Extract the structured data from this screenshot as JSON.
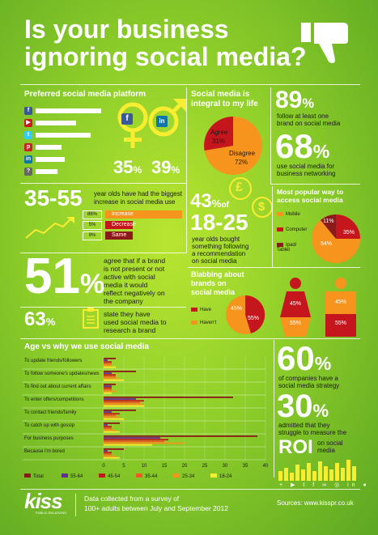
{
  "title": {
    "line1": "Is your business",
    "line2": "ignoring social media?"
  },
  "preferred": {
    "heading": "Preferred social media platform",
    "platforms": [
      {
        "icon": "facebook-icon",
        "glyph": "f",
        "color": "#3b5998",
        "value": 90
      },
      {
        "icon": "youtube-icon",
        "glyph": "▶",
        "color": "#cc181e",
        "value": 55
      },
      {
        "icon": "twitter-icon",
        "glyph": "t",
        "color": "#33ccff",
        "value": 75
      },
      {
        "icon": "pinterest-icon",
        "glyph": "p",
        "color": "#cb2027",
        "value": 35
      },
      {
        "icon": "linkedin-icon",
        "glyph": "in",
        "color": "#0e76a8",
        "value": 40
      },
      {
        "icon": "question-icon",
        "glyph": "?",
        "color": "#666666",
        "value": 30
      }
    ],
    "female_pct": "35",
    "male_pct": "39",
    "pct_sign": "%",
    "facebook_glyph": "f",
    "linkedin_glyph": "in"
  },
  "integral": {
    "heading_l1": "Social media is",
    "heading_l2": "integral to my life",
    "agree_label": "Agree",
    "agree_value": "31%",
    "agree_num": 31,
    "disagree_label": "Disagree",
    "disagree_value": "72%",
    "disagree_num": 72,
    "colors": {
      "agree": "#c4161c",
      "disagree": "#f7941d"
    }
  },
  "follow": {
    "stat1": "89",
    "stat1_desc_l1": "follow at least one",
    "stat1_desc_l2": "brand on social media",
    "stat2": "68",
    "stat2_desc_l1": "use social media for",
    "stat2_desc_l2": "business networking"
  },
  "age_increase": {
    "range": "35-55",
    "desc_l1": "year olds have had the biggest",
    "desc_l2": "increase in social media use",
    "rows": [
      {
        "pct": "86%",
        "label": "Increase",
        "value": 86,
        "color": "#f7941d"
      },
      {
        "pct": "5%",
        "label": "Decrease",
        "value": 5,
        "color": "#c4161c"
      },
      {
        "pct": "9%",
        "label": "Same",
        "value": 9,
        "color": "#8b1a1a"
      }
    ]
  },
  "recommend": {
    "pct": "43",
    "of": "of",
    "range": "18-25",
    "desc_l1": "year olds bought",
    "desc_l2": "something following",
    "desc_l3": "a recommendation",
    "desc_l4": "on social media",
    "pound_glyph": "£",
    "dollar_glyph": "$"
  },
  "access": {
    "heading": "Most popular way to access social media",
    "legend": [
      {
        "label": "Mobile",
        "color": "#f7941d"
      },
      {
        "label": "Computer",
        "color": "#c4161c"
      },
      {
        "label": "Ipad/ Tablet",
        "color": "#8b1a1a"
      }
    ],
    "values": [
      {
        "label": "11%",
        "value": 11
      },
      {
        "label": "35%",
        "value": 35
      },
      {
        "label": "54%",
        "value": 54
      }
    ]
  },
  "brand_presence": {
    "pct": "51",
    "desc_l1": "agree that if a brand",
    "desc_l2": "is not present or not",
    "desc_l3": "active with social",
    "desc_l4": "media it would",
    "desc_l5": "reflect negatively on",
    "desc_l6": "the company"
  },
  "research": {
    "pct": "63",
    "desc_l1": "state they have",
    "desc_l2": "used social media to",
    "desc_l3": "research a brand"
  },
  "blabbing": {
    "heading_l1": "Blabbing about",
    "heading_l2": "brands on",
    "heading_l3": "social media",
    "have_label": "Have",
    "have_value": "45%",
    "have_num": 45,
    "havent_label": "Haven't",
    "havent_value": "55%",
    "havent_num": 55,
    "female_top": "45%",
    "female_bottom": "55%",
    "male_top": "45%",
    "male_bottom": "55%"
  },
  "age_vs_why": {
    "heading": "Age vs why we use social media",
    "reasons": [
      "To update friends/followers",
      "To follow someone's updates/news",
      "To find out about current affairs",
      "To enter offers/competitions",
      "To contact friends/family",
      "To catch up with gossip",
      "For business purposes",
      "Because I'm bored"
    ],
    "legend": [
      "Total",
      "55-64",
      "45-54",
      "35-44",
      "25-34",
      "18-24"
    ],
    "colors": [
      "#8b1a1a",
      "#662d91",
      "#c4161c",
      "#f15a24",
      "#f7941d",
      "#f9ed32"
    ],
    "ticks": [
      "0",
      "5",
      "10",
      "15",
      "20",
      "25",
      "30",
      "35",
      "40"
    ]
  },
  "chart_data": {
    "type": "bar",
    "categories": [
      "To update friends/followers",
      "To follow someone's updates/news",
      "To find out about current affairs",
      "To enter offers/competitions",
      "To contact friends/family",
      "To catch up with gossip",
      "For business purposes",
      "Because I'm bored"
    ],
    "series": [
      {
        "name": "Total",
        "values": [
          3,
          8,
          3,
          32,
          8,
          4,
          38,
          5
        ]
      },
      {
        "name": "55-64",
        "values": [
          1,
          2,
          2,
          8,
          2,
          1,
          14,
          1
        ]
      },
      {
        "name": "45-54",
        "values": [
          2,
          3,
          2,
          10,
          4,
          2,
          16,
          2
        ]
      },
      {
        "name": "35-44",
        "values": [
          2,
          3,
          2,
          9,
          3,
          2,
          15,
          2
        ]
      },
      {
        "name": "25-34",
        "values": [
          2,
          4,
          3,
          10,
          4,
          3,
          20,
          3
        ]
      },
      {
        "name": "18-24",
        "values": [
          3,
          5,
          2,
          10,
          5,
          4,
          12,
          4
        ]
      }
    ],
    "xlim": [
      0,
      40
    ]
  },
  "strategy": {
    "pct1": "60",
    "desc1_l1": "of companies have a",
    "desc1_l2": "social media strategy",
    "pct2": "30",
    "desc2_l1": "admitted that they",
    "desc2_l2": "struggle to measure the",
    "roi": "ROI",
    "roi_suffix_l1": "on social",
    "roi_suffix_l2": "media"
  },
  "footer": {
    "logo": "kiss",
    "logo_sub": "PUBLIC RELATIONS",
    "note_l1": "Data collected from a survey of",
    "note_l2": "100+ adults between July and September 2012",
    "sources": "Sources: www.kisspr.co.uk"
  }
}
